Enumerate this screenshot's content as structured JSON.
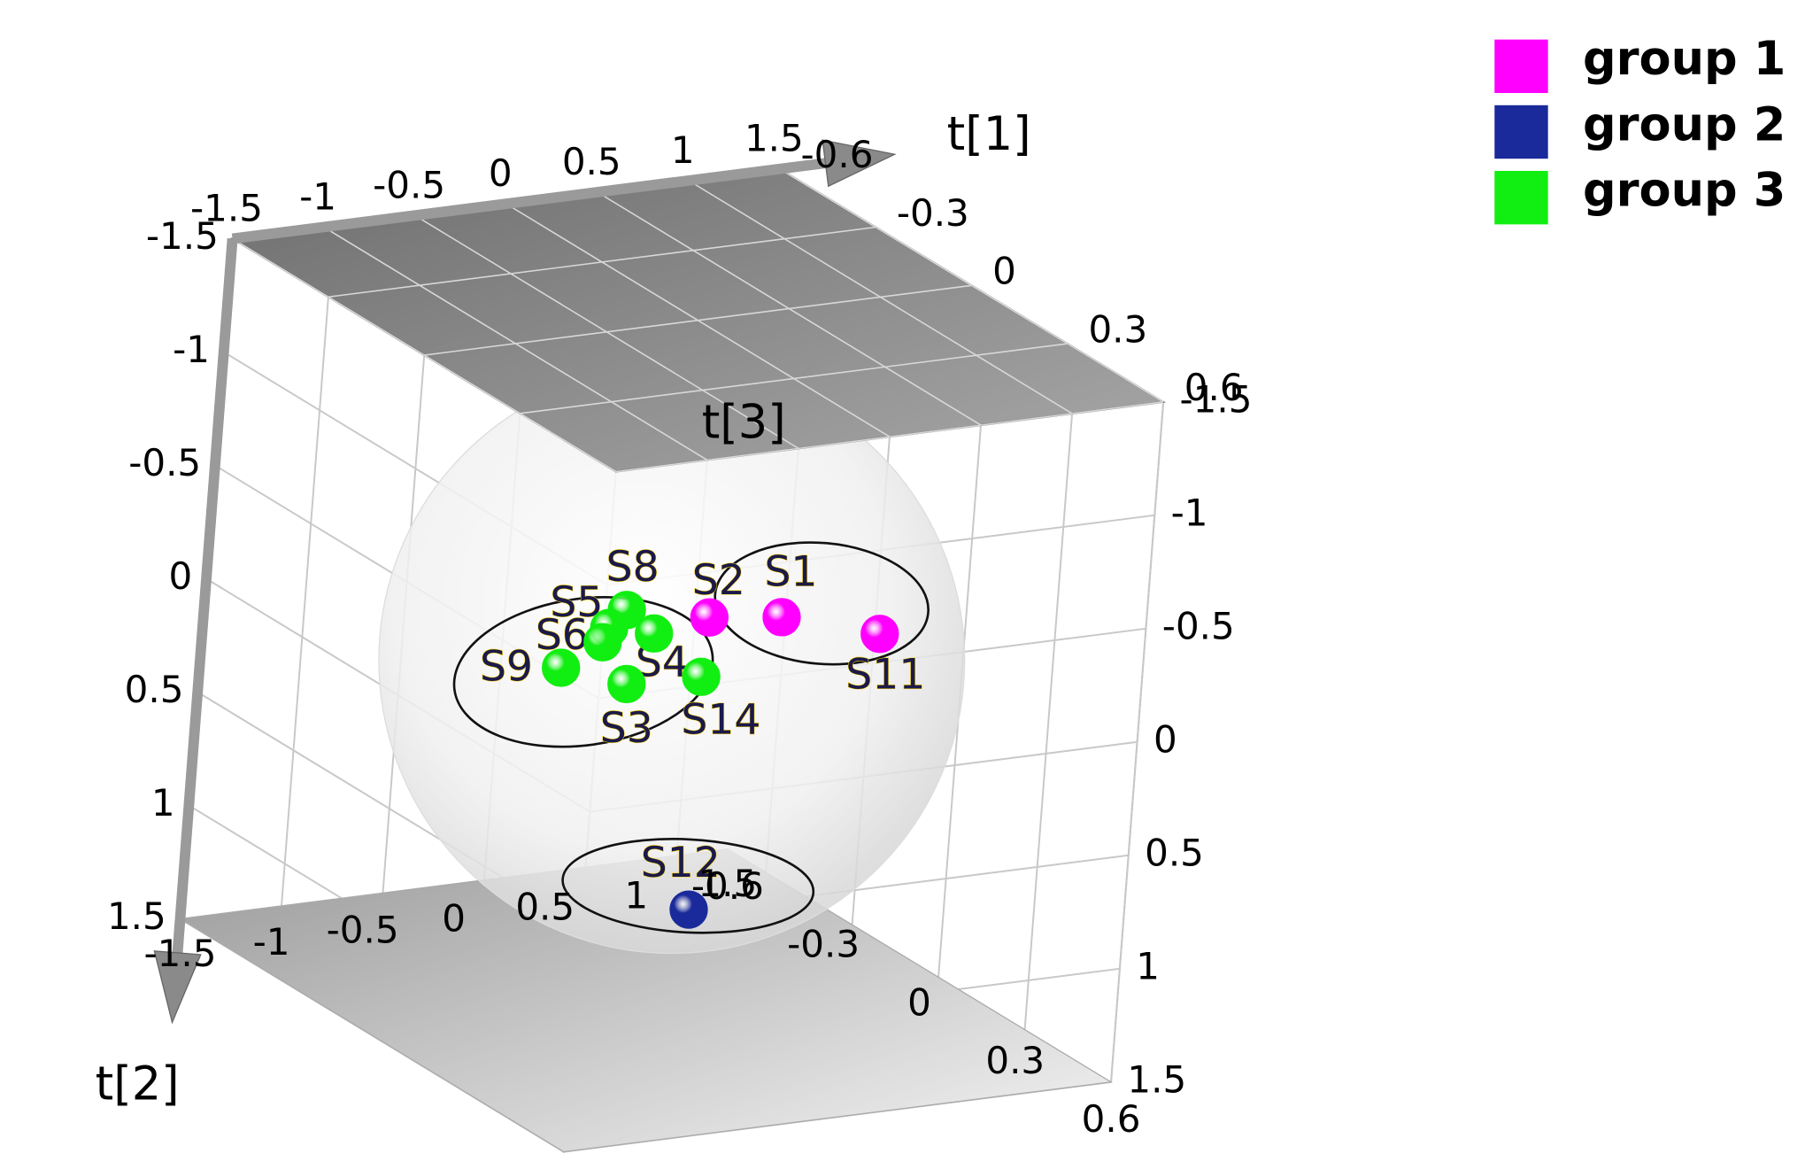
{
  "chart_data": {
    "type": "scatter3d",
    "x_label": "t[1]",
    "y_label": "t[2]",
    "z_label": "t[3]",
    "xlim": [
      -1.5,
      1.5
    ],
    "ylim": [
      -1.5,
      1.5
    ],
    "zlim": [
      -0.6,
      0.6
    ],
    "xticks": [
      -1.5,
      -1,
      -0.5,
      0,
      0.5,
      1,
      1.5
    ],
    "yticks": [
      -1.5,
      -1,
      -0.5,
      0,
      0.5,
      1,
      1.5
    ],
    "zticks": [
      -0.6,
      -0.3,
      0,
      0.3,
      0.6
    ],
    "grid": true,
    "legend": "upper right",
    "series": [
      {
        "name": "group 1",
        "color": "#ff00ff",
        "labels": [
          "S1",
          "S2",
          "S11"
        ],
        "x": [
          0.59,
          0.19,
          1.14
        ],
        "y": [
          -0.13,
          -0.17,
          0.0
        ],
        "z": [
          0,
          0,
          0
        ]
      },
      {
        "name": "group 2",
        "color": "#1a2a9a",
        "labels": [
          "S12"
        ],
        "x": [
          0.2
        ],
        "y": [
          1.12
        ],
        "z": [
          0
        ]
      },
      {
        "name": "group 3",
        "color": "#11ee11",
        "labels": [
          "S8",
          "S5",
          "S6",
          "S4",
          "S9",
          "S3",
          "S14"
        ],
        "x": [
          -0.27,
          -0.36,
          -0.39,
          -0.11,
          -0.61,
          -0.24,
          0.17
        ],
        "y": [
          -0.25,
          -0.18,
          -0.12,
          -0.13,
          -0.03,
          0.08,
          0.09
        ],
        "z": [
          0,
          0,
          0,
          0,
          0,
          0,
          0
        ]
      }
    ]
  }
}
